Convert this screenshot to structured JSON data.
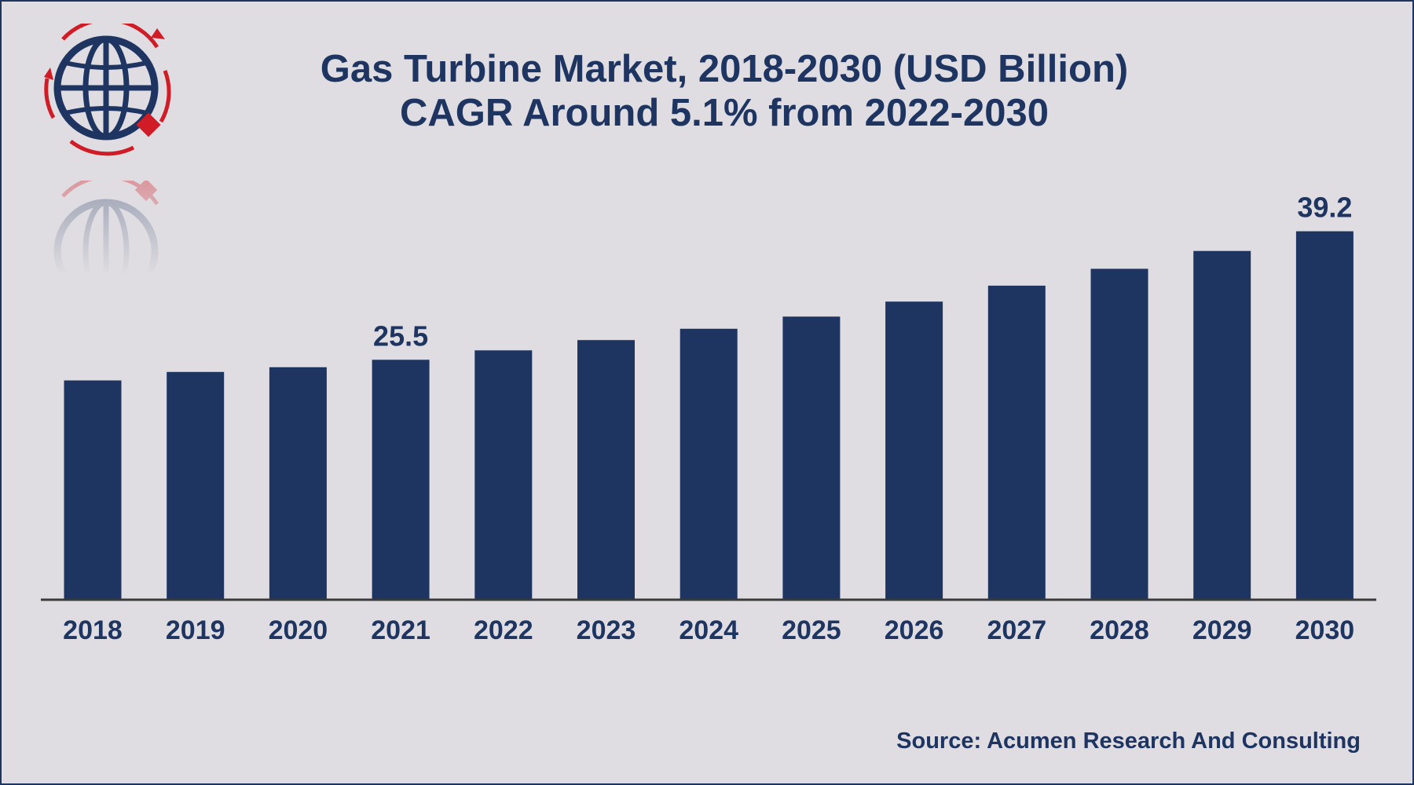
{
  "title": {
    "line1": "Gas Turbine Market, 2018-2030 (USD Billion)",
    "line2": "CAGR Around 5.1% from 2022-2030"
  },
  "source": "Source: Acumen Research And Consulting",
  "colors": {
    "background": "#dfdde1",
    "bar": "#1f3561",
    "text": "#1f3561",
    "logo_red": "#d01c26"
  },
  "chart_data": {
    "type": "bar",
    "categories": [
      "2018",
      "2019",
      "2020",
      "2021",
      "2022",
      "2023",
      "2024",
      "2025",
      "2026",
      "2027",
      "2028",
      "2029",
      "2030"
    ],
    "values": [
      23.3,
      24.2,
      24.7,
      25.5,
      26.5,
      27.6,
      28.8,
      30.1,
      31.7,
      33.4,
      35.2,
      37.1,
      39.2
    ],
    "data_labels": [
      {
        "category": "2021",
        "text": "25.5"
      },
      {
        "category": "2030",
        "text": "39.2"
      }
    ],
    "ylim": [
      0,
      40
    ],
    "grid": false,
    "xlabel": "",
    "ylabel": ""
  }
}
